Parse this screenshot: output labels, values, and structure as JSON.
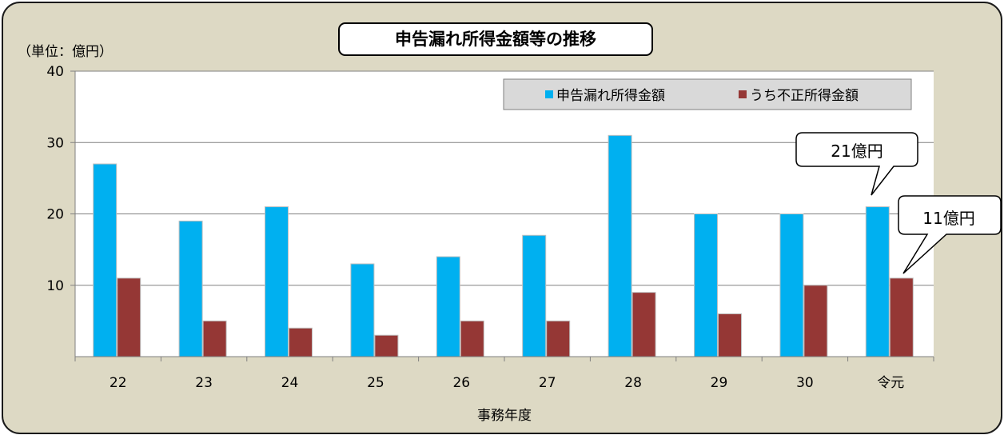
{
  "chart_data": {
    "type": "bar",
    "title": "申告漏れ所得金額等の推移",
    "unit_label": "（単位：億円）",
    "xlabel": "事務年度",
    "ylabel": "",
    "categories": [
      "22",
      "23",
      "24",
      "25",
      "26",
      "27",
      "28",
      "29",
      "30",
      "令元"
    ],
    "series": [
      {
        "name": "申告漏れ所得金額",
        "color": "#00b0f0",
        "values": [
          27,
          19,
          21,
          13,
          14,
          17,
          31,
          20,
          20,
          21
        ]
      },
      {
        "name": "うち不正所得金額",
        "color": "#953735",
        "values": [
          11,
          5,
          4,
          3,
          5,
          5,
          9,
          6,
          10,
          11
        ]
      }
    ],
    "ylim": [
      0,
      40
    ],
    "yticks": [
      40,
      30,
      20,
      10
    ],
    "grid": true,
    "legend_position": "top-right",
    "background_color": "#ddd9c4",
    "callouts": [
      {
        "text": "21億円",
        "series": 0,
        "category": "令元"
      },
      {
        "text": "11億円",
        "series": 1,
        "category": "令元"
      }
    ]
  }
}
